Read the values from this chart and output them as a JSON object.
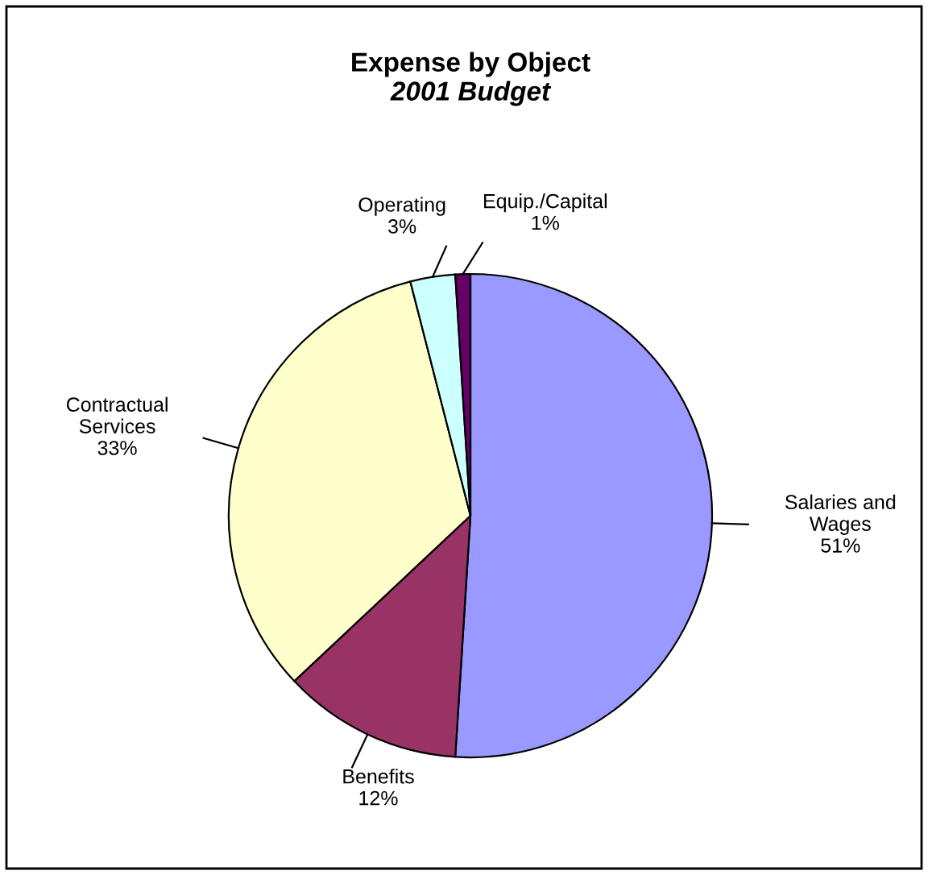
{
  "chart_data": {
    "type": "pie",
    "title": "Expense by Object",
    "subtitle": "2001 Budget",
    "categories": [
      "Salaries and\nWages",
      "Benefits",
      "Contractual\nServices",
      "Operating",
      "Equip./Capital"
    ],
    "values": [
      51,
      12,
      33,
      3,
      1
    ],
    "colors": [
      "#9999ff",
      "#993366",
      "#ffffcc",
      "#ccffff",
      "#660066"
    ],
    "value_labels": [
      "51%",
      "12%",
      "33%",
      "3%",
      "1%"
    ]
  }
}
